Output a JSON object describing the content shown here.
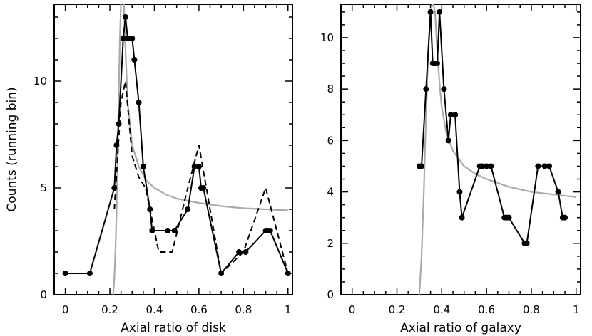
{
  "chart_data": [
    {
      "type": "line",
      "xlabel": "Axial ratio of disk",
      "ylabel": "Counts (running bin)",
      "xlim": [
        -0.05,
        1.02
      ],
      "ylim": [
        0,
        13.6
      ],
      "xticks": [
        0,
        0.2,
        0.4,
        0.6,
        0.8,
        1
      ],
      "xtick_labels": [
        "0",
        "0.2",
        "0.4",
        "0.6",
        "0.8",
        "1"
      ],
      "yticks": [
        0,
        5,
        10
      ],
      "ytick_labels": [
        "0",
        "5",
        "10"
      ],
      "series": [
        {
          "style": "solid-markers",
          "color": "#000000",
          "x": [
            0.0,
            0.11,
            0.22,
            0.23,
            0.24,
            0.26,
            0.27,
            0.28,
            0.29,
            0.3,
            0.31,
            0.33,
            0.35,
            0.38,
            0.39,
            0.46,
            0.49,
            0.55,
            0.58,
            0.6,
            0.61,
            0.62,
            0.7,
            0.78,
            0.81,
            0.9,
            0.91,
            0.92,
            1.0
          ],
          "y": [
            1,
            1,
            5,
            7,
            8,
            12,
            13,
            12,
            12,
            12,
            11,
            9,
            6,
            4,
            3,
            3,
            3,
            4,
            6,
            6,
            5,
            5,
            1,
            2,
            2,
            3,
            3,
            3,
            1
          ]
        },
        {
          "style": "dashed",
          "color": "#000000",
          "x": [
            0.22,
            0.25,
            0.27,
            0.3,
            0.33,
            0.36,
            0.38,
            0.42,
            0.48,
            0.55,
            0.6,
            0.7,
            0.8,
            0.9,
            1.0
          ],
          "y": [
            4,
            9,
            10,
            6.5,
            5.5,
            5,
            4,
            2,
            2,
            5,
            7,
            1,
            2,
            5,
            1
          ]
        },
        {
          "style": "model-curve",
          "color": "#aaaaaa",
          "x": [
            0.215,
            0.22,
            0.225,
            0.23,
            0.235,
            0.24,
            0.245,
            0.25,
            0.255,
            0.26,
            0.27,
            0.28,
            0.3,
            0.33,
            0.36,
            0.4,
            0.45,
            0.5,
            0.6,
            0.7,
            0.8,
            0.9,
            1.0
          ],
          "y": [
            0,
            0.8,
            2.0,
            3.8,
            6.5,
            9.5,
            12.0,
            13.6,
            14.5,
            14.5,
            11.5,
            9.0,
            7.0,
            6.0,
            5.4,
            5.0,
            4.7,
            4.5,
            4.3,
            4.15,
            4.05,
            4.0,
            3.95
          ]
        }
      ]
    },
    {
      "type": "line",
      "xlabel": "Axial ratio of galaxy",
      "ylabel": "",
      "xlim": [
        -0.05,
        1.02
      ],
      "ylim": [
        0,
        11.3
      ],
      "xticks": [
        0,
        0.2,
        0.4,
        0.6,
        0.8,
        1
      ],
      "xtick_labels": [
        "0",
        "0.2",
        "0.4",
        "0.6",
        "0.8",
        "1"
      ],
      "yticks": [
        0,
        2,
        4,
        6,
        8,
        10
      ],
      "ytick_labels": [
        "0",
        "2",
        "4",
        "6",
        "8",
        "10"
      ],
      "series": [
        {
          "style": "solid-markers",
          "color": "#000000",
          "x": [
            0.3,
            0.31,
            0.33,
            0.35,
            0.36,
            0.37,
            0.38,
            0.39,
            0.41,
            0.43,
            0.44,
            0.46,
            0.48,
            0.49,
            0.57,
            0.58,
            0.6,
            0.62,
            0.68,
            0.69,
            0.7,
            0.77,
            0.78,
            0.83,
            0.86,
            0.88,
            0.92,
            0.94,
            0.95
          ],
          "y": [
            5,
            5,
            8,
            11,
            9,
            9,
            9,
            11,
            8,
            6,
            7,
            7,
            4,
            3,
            5,
            5,
            5,
            5,
            3,
            3,
            3,
            2,
            2,
            5,
            5,
            5,
            4,
            3,
            3
          ]
        },
        {
          "style": "model-curve",
          "color": "#aaaaaa",
          "x": [
            0.3,
            0.31,
            0.32,
            0.33,
            0.34,
            0.35,
            0.36,
            0.37,
            0.38,
            0.39,
            0.4,
            0.42,
            0.45,
            0.5,
            0.55,
            0.6,
            0.7,
            0.8,
            0.9,
            1.0
          ],
          "y": [
            0,
            1.5,
            4.0,
            7.0,
            9.5,
            11.0,
            11.4,
            11.0,
            9.5,
            8.2,
            7.3,
            6.3,
            5.6,
            5.0,
            4.7,
            4.5,
            4.2,
            4.0,
            3.9,
            3.8
          ]
        }
      ]
    }
  ]
}
